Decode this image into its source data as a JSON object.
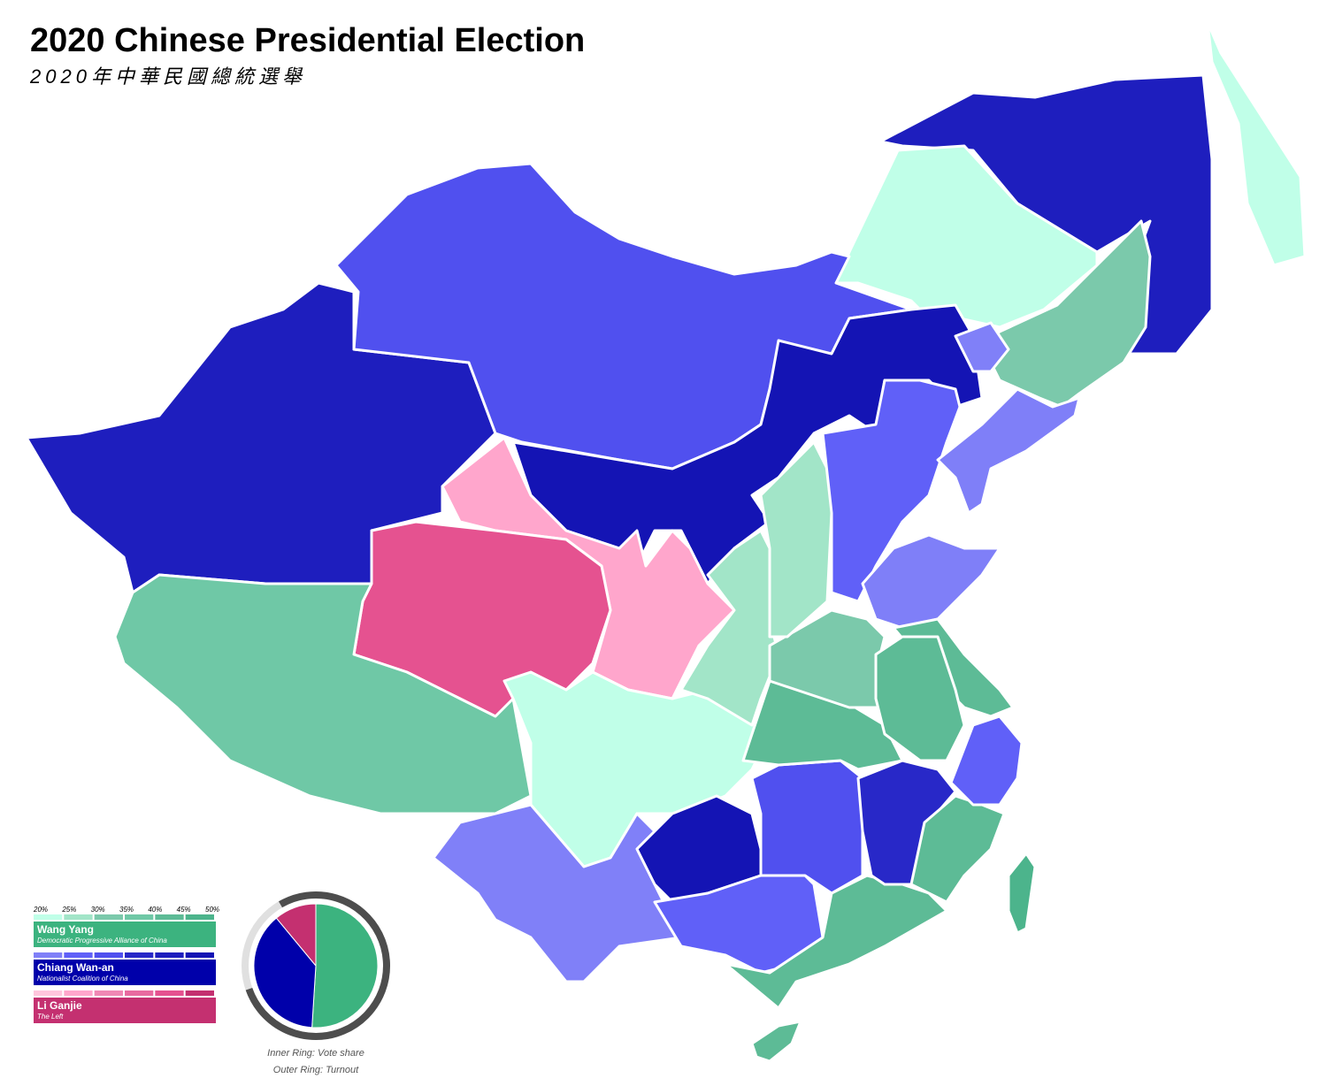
{
  "header": {
    "title": "2020 Chinese Presidential Election",
    "subtitle": "2020年中華民國總統選舉"
  },
  "legend": {
    "scale": [
      "20%",
      "25%",
      "30%",
      "35%",
      "40%",
      "45%",
      "50%"
    ],
    "candidates": [
      {
        "name": "Wang Yang",
        "party": "Democratic Progressive Alliance of China",
        "color": "#3cb37f",
        "shades": [
          "#c0ffe8",
          "#a2e5c8",
          "#7bc9ab",
          "#6fc8a6",
          "#5dbb96",
          "#4cb48c"
        ]
      },
      {
        "name": "Chiang Wan-an",
        "party": "Nationalist Coalition of China",
        "color": "#0000aa",
        "shades": [
          "#8080f8",
          "#6060f8",
          "#5050ef",
          "#2828c8",
          "#1e1ebe",
          "#1414b4"
        ]
      },
      {
        "name": "Li Ganjie",
        "party": "The Left",
        "color": "#c43070",
        "shades": [
          "#ffc6dd",
          "#ffa6cc",
          "#f088b4",
          "#e86aa0",
          "#e55290",
          "#c43070"
        ]
      }
    ]
  },
  "chart_data": {
    "type": "pie",
    "values": [
      51,
      38,
      11
    ],
    "colors": [
      "#3cb37f",
      "#0000aa",
      "#c43070"
    ],
    "turnout": 78,
    "captions": [
      "Inner Ring: Vote share",
      "Outer Ring: Turnout"
    ]
  }
}
